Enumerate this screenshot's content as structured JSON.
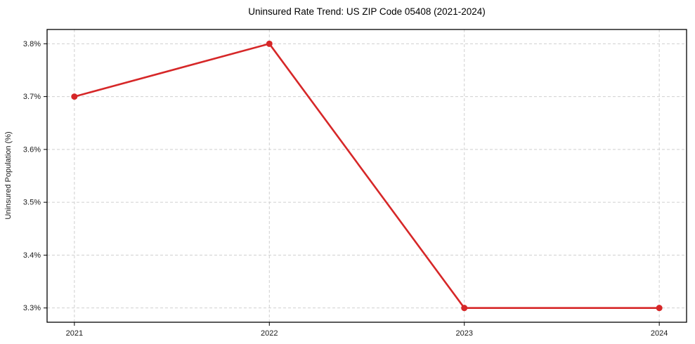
{
  "chart_data": {
    "type": "line",
    "title": "Uninsured Rate Trend: US ZIP Code 05408 (2021-2024)",
    "xlabel": "",
    "ylabel": "Uninsured Population (%)",
    "categories": [
      "2021",
      "2022",
      "2023",
      "2024"
    ],
    "x": [
      2021,
      2022,
      2023,
      2024
    ],
    "values": [
      3.7,
      3.8,
      3.3,
      3.3
    ],
    "y_ticks": [
      3.3,
      3.4,
      3.5,
      3.6,
      3.7,
      3.8
    ],
    "y_tick_labels": [
      "3.3%",
      "3.4%",
      "3.5%",
      "3.6%",
      "3.7%",
      "3.8%"
    ],
    "ylim": [
      3.273,
      3.827
    ],
    "xlim": [
      2020.86,
      2024.14
    ],
    "grid": true,
    "legend": false,
    "marker": "circle",
    "marker_radius": 4.5,
    "line_color": "#d62728",
    "grid_color": "#cfcfcf",
    "axis_color": "#000000",
    "background": "#ffffff"
  }
}
